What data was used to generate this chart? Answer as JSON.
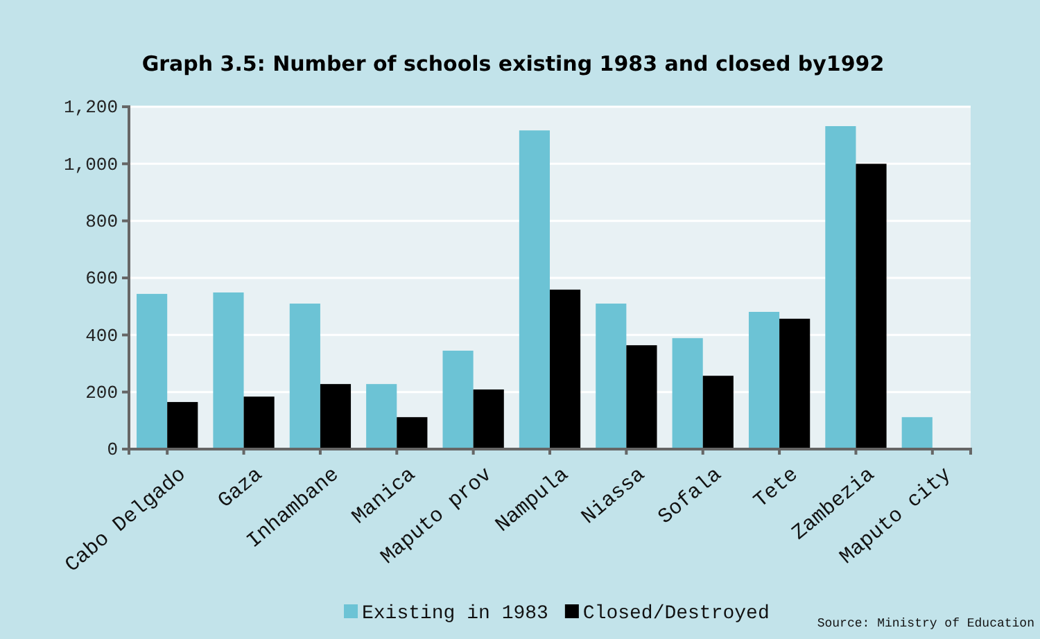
{
  "chart_data": {
    "type": "bar",
    "title": "Graph 3.5:  Number of schools existing 1983 and closed by1992",
    "categories": [
      "Cabo Delgado",
      "Gaza",
      "Inhambane",
      "Manica",
      "Maputo prov",
      "Nampula",
      "Niassa",
      "Sofala",
      "Tete",
      "Zambezia",
      "Maputo city"
    ],
    "series": [
      {
        "name": "Existing in 1983",
        "color": "#6cc3d5",
        "values": [
          544,
          549,
          510,
          228,
          345,
          1117,
          510,
          389,
          481,
          1132,
          112
        ]
      },
      {
        "name": "Closed/Destroyed",
        "color": "#000000",
        "values": [
          165,
          184,
          228,
          112,
          209,
          559,
          364,
          257,
          457,
          1000,
          null
        ]
      }
    ],
    "ylim": [
      0,
      1200
    ],
    "yticks": [
      0,
      200,
      400,
      600,
      800,
      {
        "value": 1000,
        "label": "1,000"
      },
      {
        "value": 1200,
        "label": "1,200"
      }
    ],
    "grid": "y",
    "legend": "bottom",
    "annotations": [
      "Source: Ministry of Education"
    ]
  }
}
